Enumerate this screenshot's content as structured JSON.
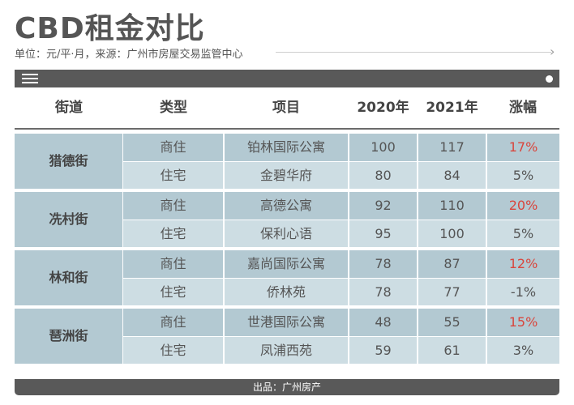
{
  "title": "CBD租金对比",
  "subtitle": "单位：元/平·月，来源：广州市房屋交易监管中心",
  "icons": {
    "menu": "menu-icon",
    "dot": "dot-icon",
    "arrow": "chevron-right-icon"
  },
  "colors": {
    "bar": "#595959",
    "row_dark": "#b3c9d2",
    "row_light": "#cdddE3",
    "up": "#d9463d"
  },
  "headers": [
    "街道",
    "类型",
    "项目",
    "2020年",
    "2021年",
    "涨幅"
  ],
  "groups": [
    {
      "street": "猎德街",
      "rows": [
        {
          "type": "商住",
          "project": "铂林国际公寓",
          "y2020": "100",
          "y2021": "117",
          "change": "17%",
          "up": true
        },
        {
          "type": "住宅",
          "project": "金碧华府",
          "y2020": "80",
          "y2021": "84",
          "change": "5%",
          "up": false
        }
      ]
    },
    {
      "street": "冼村街",
      "rows": [
        {
          "type": "商住",
          "project": "高德公寓",
          "y2020": "92",
          "y2021": "110",
          "change": "20%",
          "up": true
        },
        {
          "type": "住宅",
          "project": "保利心语",
          "y2020": "95",
          "y2021": "100",
          "change": "5%",
          "up": false
        }
      ]
    },
    {
      "street": "林和街",
      "rows": [
        {
          "type": "商住",
          "project": "嘉尚国际公寓",
          "y2020": "78",
          "y2021": "87",
          "change": "12%",
          "up": true
        },
        {
          "type": "住宅",
          "project": "侨林苑",
          "y2020": "78",
          "y2021": "77",
          "change": "-1%",
          "up": false
        }
      ]
    },
    {
      "street": "琶洲街",
      "rows": [
        {
          "type": "商住",
          "project": "世港国际公寓",
          "y2020": "48",
          "y2021": "55",
          "change": "15%",
          "up": true
        },
        {
          "type": "住宅",
          "project": "凤浦西苑",
          "y2020": "59",
          "y2021": "61",
          "change": "3%",
          "up": false
        }
      ]
    }
  ],
  "footer": "出品：广州房产"
}
